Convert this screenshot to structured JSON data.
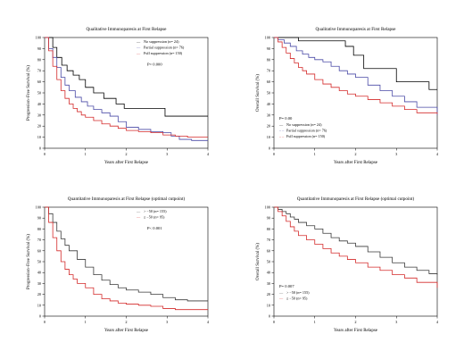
{
  "figure": {
    "background": "#ffffff"
  },
  "chart_data": [
    {
      "type": "line",
      "title": "Qualitative Immunoparesis at First Relapse",
      "xlabel": "Years after First Relapse",
      "ylabel": "Progression–Free Survival (%)",
      "xlim": [
        0,
        4
      ],
      "ylim": [
        0,
        100
      ],
      "x_ticks": [
        "0",
        "1",
        "2",
        "3",
        "4"
      ],
      "y_ticks": [
        "0",
        "10",
        "20",
        "30",
        "40",
        "50",
        "60",
        "70",
        "80",
        "90",
        "100"
      ],
      "legend_position": "top-right",
      "annotation": "P= 0.000",
      "series": [
        {
          "name": "No suppression (n= 24)",
          "color": "#000000",
          "legend_mark": "—",
          "x": [
            0,
            0.2,
            0.3,
            0.42,
            0.55,
            0.7,
            0.85,
            1.0,
            1.2,
            1.45,
            1.75,
            1.95,
            2.3,
            2.6,
            2.95,
            3.1,
            4.0
          ],
          "y": [
            100,
            91,
            82,
            75,
            70,
            66,
            62,
            55,
            50,
            45,
            40,
            36,
            36,
            36,
            29,
            29,
            29
          ]
        },
        {
          "name": "Partial suppression (n= 76)",
          "color": "#4a4aa6",
          "legend_mark": "—",
          "x": [
            0,
            0.1,
            0.2,
            0.3,
            0.4,
            0.5,
            0.6,
            0.75,
            0.9,
            1.05,
            1.2,
            1.4,
            1.6,
            1.8,
            2.0,
            2.3,
            2.6,
            2.9,
            3.1,
            3.3,
            3.6,
            4.0
          ],
          "y": [
            100,
            90,
            82,
            73,
            64,
            57,
            52,
            46,
            42,
            38,
            35,
            32,
            29,
            24,
            19,
            17,
            15,
            14,
            11,
            8,
            7,
            7
          ]
        },
        {
          "name": "Full suppression (n= 150)",
          "color": "#d42a2a",
          "legend_mark": "—",
          "x": [
            0,
            0.1,
            0.2,
            0.3,
            0.4,
            0.5,
            0.6,
            0.7,
            0.8,
            0.9,
            1.0,
            1.2,
            1.4,
            1.6,
            1.8,
            2.0,
            2.3,
            2.6,
            2.9,
            3.2,
            3.5,
            4.0
          ],
          "y": [
            100,
            88,
            74,
            62,
            52,
            45,
            40,
            36,
            33,
            30,
            28,
            25,
            22,
            20,
            18,
            16,
            15,
            14,
            12,
            11,
            10,
            10
          ]
        }
      ]
    },
    {
      "type": "line",
      "title": "Qualitative Immunoparesis at First Relapse",
      "xlabel": "Years after First Relapse",
      "ylabel": "Overall Survival (%)",
      "xlim": [
        0,
        4
      ],
      "ylim": [
        0,
        100
      ],
      "x_ticks": [
        "0",
        "1",
        "2",
        "3",
        "4"
      ],
      "y_ticks": [
        "0",
        "10",
        "20",
        "30",
        "40",
        "50",
        "60",
        "70",
        "80",
        "90",
        "100"
      ],
      "legend_position": "bottom-left",
      "annotation": "P= 0.00",
      "series": [
        {
          "name": "No suppression (n= 24)",
          "color": "#000000",
          "legend_mark": "—",
          "x": [
            0,
            0.45,
            0.6,
            1.6,
            1.75,
            1.95,
            2.2,
            3.0,
            3.7,
            3.8,
            4.0
          ],
          "y": [
            100,
            100,
            97,
            97,
            92,
            84,
            72,
            60,
            60,
            53,
            53
          ]
        },
        {
          "name": "Partial suppression (n= 76)",
          "color": "#4a4aa6",
          "legend_mark": "– –",
          "x": [
            0,
            0.1,
            0.25,
            0.4,
            0.55,
            0.7,
            0.85,
            1.0,
            1.2,
            1.4,
            1.6,
            1.8,
            2.0,
            2.3,
            2.6,
            2.9,
            3.2,
            3.5,
            4.0
          ],
          "y": [
            100,
            98,
            95,
            92,
            88,
            85,
            82,
            80,
            78,
            74,
            70,
            67,
            64,
            57,
            52,
            47,
            42,
            37,
            30
          ]
        },
        {
          "name": "Full suppression (n= 150)",
          "color": "#d42a2a",
          "legend_mark": "– –",
          "x": [
            0,
            0.1,
            0.2,
            0.3,
            0.4,
            0.5,
            0.6,
            0.7,
            0.8,
            1.0,
            1.2,
            1.4,
            1.6,
            1.8,
            2.0,
            2.3,
            2.6,
            2.9,
            3.2,
            3.5,
            4.0
          ],
          "y": [
            100,
            96,
            91,
            86,
            81,
            77,
            73,
            70,
            67,
            62,
            58,
            55,
            52,
            49,
            47,
            44,
            41,
            38,
            35,
            32,
            31
          ]
        }
      ]
    },
    {
      "type": "line",
      "title": "Quantitative Immunoparesis at First Relapse (optimal cutpoint)",
      "xlabel": "Years after First Relapse",
      "ylabel": "Progression–Free Survival (%)",
      "xlim": [
        0,
        4
      ],
      "ylim": [
        0,
        100
      ],
      "x_ticks": [
        "0",
        "1",
        "2",
        "3",
        "4"
      ],
      "y_ticks": [
        "0",
        "10",
        "20",
        "30",
        "40",
        "50",
        "60",
        "70",
        "80",
        "90",
        "100"
      ],
      "legend_position": "top-right",
      "annotation": "P< 0.001",
      "series": [
        {
          "name": "> −50 (n= 155)",
          "color": "#3a3a3a",
          "legend_mark": "—",
          "x": [
            0,
            0.1,
            0.2,
            0.3,
            0.4,
            0.5,
            0.6,
            0.8,
            1.0,
            1.2,
            1.4,
            1.6,
            1.8,
            2.0,
            2.3,
            2.6,
            2.9,
            3.2,
            3.5,
            4.0
          ],
          "y": [
            100,
            94,
            86,
            78,
            71,
            65,
            60,
            52,
            45,
            38,
            33,
            29,
            26,
            24,
            22,
            20,
            17,
            15,
            14,
            14
          ]
        },
        {
          "name": "≤ −50 (n= 95)",
          "color": "#d42a2a",
          "legend_mark": "—",
          "x": [
            0,
            0.1,
            0.2,
            0.3,
            0.4,
            0.5,
            0.6,
            0.7,
            0.8,
            1.0,
            1.2,
            1.4,
            1.6,
            1.8,
            2.0,
            2.3,
            2.6,
            2.9,
            3.2,
            4.0
          ],
          "y": [
            100,
            86,
            72,
            60,
            50,
            43,
            38,
            34,
            30,
            26,
            20,
            16,
            14,
            12,
            11,
            10,
            9,
            7,
            6,
            6
          ]
        }
      ]
    },
    {
      "type": "line",
      "title": "Quantitative Immunoparesis at First Relapse (optimal cutpoint)",
      "xlabel": "Years after First Relapse",
      "ylabel": "Overall Survival (%)",
      "xlim": [
        0,
        4
      ],
      "ylim": [
        0,
        100
      ],
      "x_ticks": [
        "0",
        "1",
        "2",
        "3",
        "4"
      ],
      "y_ticks": [
        "0",
        "10",
        "20",
        "30",
        "40",
        "50",
        "60",
        "70",
        "80",
        "90",
        "100"
      ],
      "legend_position": "bottom-left",
      "annotation": "P= 0.007",
      "series": [
        {
          "name": "> −50 (n= 155)",
          "color": "#3a3a3a",
          "legend_mark": "—",
          "x": [
            0,
            0.1,
            0.2,
            0.3,
            0.4,
            0.5,
            0.6,
            0.8,
            1.0,
            1.2,
            1.4,
            1.6,
            1.8,
            2.0,
            2.3,
            2.6,
            2.9,
            3.2,
            3.5,
            3.8,
            4.0
          ],
          "y": [
            100,
            98,
            96,
            94,
            91,
            89,
            86,
            83,
            80,
            76,
            72,
            69,
            67,
            64,
            59,
            54,
            49,
            45,
            42,
            39,
            38
          ]
        },
        {
          "name": "≤ −50 (n= 95)",
          "color": "#d42a2a",
          "legend_mark": "—",
          "x": [
            0,
            0.1,
            0.2,
            0.3,
            0.4,
            0.5,
            0.6,
            0.8,
            1.0,
            1.2,
            1.4,
            1.6,
            1.8,
            2.0,
            2.3,
            2.6,
            2.9,
            3.2,
            3.5,
            4.0
          ],
          "y": [
            100,
            96,
            92,
            87,
            82,
            78,
            74,
            70,
            66,
            62,
            58,
            55,
            52,
            49,
            45,
            42,
            38,
            35,
            31,
            26
          ]
        }
      ]
    }
  ]
}
